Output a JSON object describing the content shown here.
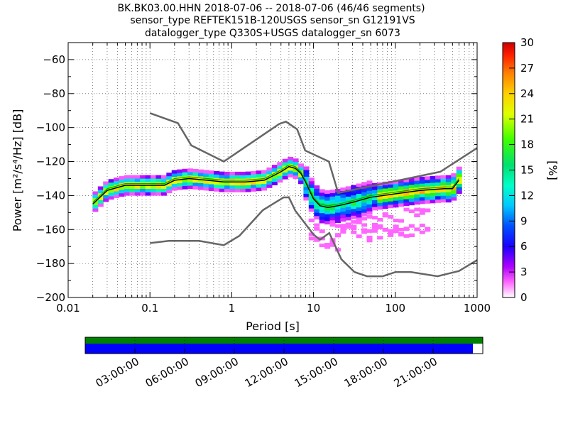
{
  "title": {
    "line1": "BK.BK03.00.HHN   2018-07-06 -- 2018-07-06  (46/46 segments)",
    "line2": "sensor_type REFTEK151B-120USGS sensor_sn G12191VS",
    "line3": "datalogger_type Q330S+USGS datalogger_sn 6073"
  },
  "chart_data": {
    "type": "heatmap",
    "xlabel": "Period [s]",
    "ylabel": "Power [m²/s⁴/Hz] [dB]",
    "xscale": "log",
    "xlim": [
      0.01,
      1000
    ],
    "ylim": [
      -200,
      -50
    ],
    "xticks": [
      {
        "value": 0.01,
        "label": "0.01"
      },
      {
        "value": 0.1,
        "label": "0.1"
      },
      {
        "value": 1,
        "label": "1"
      },
      {
        "value": 10,
        "label": "10"
      },
      {
        "value": 100,
        "label": "100"
      },
      {
        "value": 1000,
        "label": "1000"
      }
    ],
    "yticks": [
      {
        "value": -60,
        "label": "−60"
      },
      {
        "value": -80,
        "label": "−80"
      },
      {
        "value": -100,
        "label": "−100"
      },
      {
        "value": -120,
        "label": "−120"
      },
      {
        "value": -140,
        "label": "−140"
      },
      {
        "value": -160,
        "label": "−160"
      },
      {
        "value": -180,
        "label": "−180"
      },
      {
        "value": -200,
        "label": "−200"
      }
    ],
    "grid": "dotted",
    "noise_models": {
      "high": [
        [
          0.1,
          -91.5
        ],
        [
          0.22,
          -97.4
        ],
        [
          0.32,
          -110.5
        ],
        [
          0.8,
          -120
        ],
        [
          3.8,
          -97.9
        ],
        [
          4.6,
          -96.5
        ],
        [
          6.3,
          -101
        ],
        [
          7.9,
          -113.5
        ],
        [
          15.4,
          -120
        ],
        [
          20,
          -138.5
        ],
        [
          354.8,
          -126
        ],
        [
          1000,
          -112
        ]
      ],
      "low": [
        [
          0.1,
          -168
        ],
        [
          0.17,
          -166.7
        ],
        [
          0.4,
          -166.7
        ],
        [
          0.8,
          -169.2
        ],
        [
          1.24,
          -163.7
        ],
        [
          2.4,
          -148.6
        ],
        [
          4.3,
          -141.1
        ],
        [
          5,
          -141.1
        ],
        [
          6,
          -149
        ],
        [
          10,
          -163
        ],
        [
          12,
          -166
        ],
        [
          15.6,
          -162
        ],
        [
          21.9,
          -177.5
        ],
        [
          31.6,
          -185
        ],
        [
          45,
          -187.5
        ],
        [
          70,
          -187.5
        ],
        [
          101,
          -185
        ],
        [
          154,
          -185
        ],
        [
          328,
          -187.5
        ],
        [
          600,
          -184.4
        ],
        [
          1000,
          -178
        ]
      ]
    },
    "mean_curve": [
      [
        0.02,
        -145
      ],
      [
        0.03,
        -137
      ],
      [
        0.05,
        -134
      ],
      [
        0.1,
        -134
      ],
      [
        0.15,
        -134
      ],
      [
        0.2,
        -131
      ],
      [
        0.3,
        -130
      ],
      [
        0.5,
        -131
      ],
      [
        0.8,
        -132
      ],
      [
        1.5,
        -132
      ],
      [
        2.5,
        -131
      ],
      [
        4,
        -126
      ],
      [
        5,
        -123
      ],
      [
        6,
        -124
      ],
      [
        7,
        -127
      ],
      [
        8,
        -132
      ],
      [
        10,
        -142
      ],
      [
        12,
        -146
      ],
      [
        15,
        -147
      ],
      [
        20,
        -146
      ],
      [
        30,
        -144
      ],
      [
        50,
        -141
      ],
      [
        100,
        -139
      ],
      [
        200,
        -137
      ],
      [
        400,
        -136
      ],
      [
        500,
        -136
      ],
      [
        600,
        -131
      ]
    ],
    "mode_curve": [
      [
        0.02,
        -144
      ],
      [
        0.03,
        -136
      ],
      [
        0.05,
        -133
      ],
      [
        0.1,
        -133
      ],
      [
        0.15,
        -133
      ],
      [
        0.2,
        -130
      ],
      [
        0.3,
        -129
      ],
      [
        0.5,
        -130
      ],
      [
        0.8,
        -131
      ],
      [
        1.5,
        -131
      ],
      [
        2.5,
        -130
      ],
      [
        4,
        -125
      ],
      [
        5,
        -122
      ],
      [
        6,
        -123
      ],
      [
        7,
        -126
      ],
      [
        8,
        -131
      ],
      [
        10,
        -141
      ],
      [
        12,
        -145
      ],
      [
        15,
        -146
      ],
      [
        20,
        -145
      ],
      [
        30,
        -143
      ],
      [
        50,
        -140
      ],
      [
        100,
        -138
      ],
      [
        200,
        -136
      ],
      [
        400,
        -135
      ],
      [
        500,
        -135
      ],
      [
        600,
        -130
      ]
    ],
    "colorbar": {
      "label": "[%]",
      "range": [
        0,
        30
      ],
      "ticks": [
        "0",
        "3",
        "6",
        "9",
        "12",
        "15",
        "18",
        "21",
        "24",
        "27",
        "30"
      ]
    },
    "time_axis": {
      "ticks": [
        "03:00:00",
        "06:00:00",
        "09:00:00",
        "12:00:00",
        "15:00:00",
        "18:00:00",
        "21:00:00"
      ],
      "data_coverage_fraction": 1.0,
      "processed_coverage_fraction": 0.975
    }
  }
}
